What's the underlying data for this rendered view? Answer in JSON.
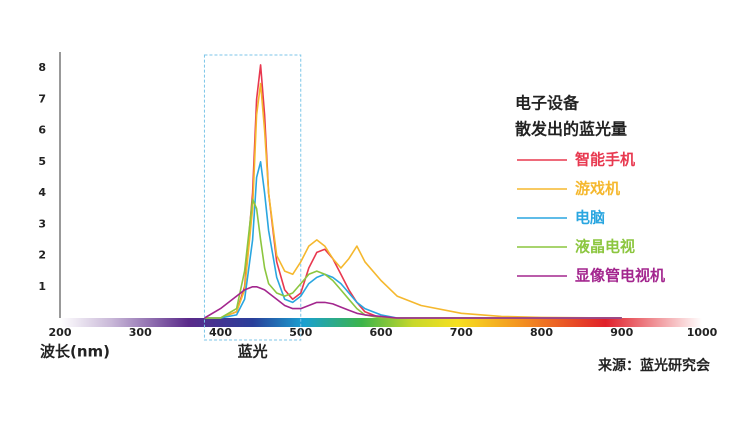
{
  "chart_data": {
    "type": "line",
    "legend_title": [
      "电子设备",
      "散发出的蓝光量"
    ],
    "x_label": "波长(nm)",
    "source": "来源：蓝光研究会",
    "blue_light_band": {
      "label": "蓝光",
      "range": [
        380,
        500
      ]
    },
    "x": [
      380,
      400,
      420,
      430,
      440,
      445,
      450,
      455,
      460,
      470,
      480,
      490,
      500,
      510,
      520,
      530,
      540,
      550,
      560,
      570,
      580,
      600,
      620,
      650,
      700,
      750,
      800,
      900
    ],
    "series": [
      {
        "name": "智能手机",
        "color": "#e8384f",
        "values": [
          0,
          0,
          0.2,
          1.0,
          4.0,
          7.0,
          8.1,
          6.5,
          4.0,
          1.8,
          0.9,
          0.6,
          0.8,
          1.6,
          2.1,
          2.2,
          1.9,
          1.4,
          0.9,
          0.5,
          0.2,
          0,
          0,
          0,
          0,
          0,
          0,
          0
        ]
      },
      {
        "name": "游戏机",
        "color": "#f5b82e",
        "values": [
          0,
          0,
          0.2,
          0.9,
          3.5,
          6.5,
          7.5,
          6.0,
          4.0,
          2.0,
          1.5,
          1.4,
          1.8,
          2.3,
          2.5,
          2.3,
          1.9,
          1.6,
          1.9,
          2.3,
          1.8,
          1.2,
          0.7,
          0.4,
          0.15,
          0.05,
          0.02,
          0
        ]
      },
      {
        "name": "电脑",
        "color": "#2aa6e0",
        "values": [
          0,
          0,
          0.1,
          0.6,
          2.5,
          4.5,
          5.0,
          4.0,
          2.8,
          1.3,
          0.6,
          0.5,
          0.7,
          1.1,
          1.3,
          1.4,
          1.3,
          1.1,
          0.8,
          0.5,
          0.3,
          0.1,
          0,
          0,
          0,
          0,
          0,
          0
        ]
      },
      {
        "name": "液晶电视",
        "color": "#8cc63f",
        "values": [
          0,
          0,
          0.3,
          1.5,
          3.8,
          3.5,
          2.5,
          1.6,
          1.1,
          0.8,
          0.7,
          0.8,
          1.1,
          1.4,
          1.5,
          1.4,
          1.2,
          0.9,
          0.6,
          0.3,
          0.1,
          0,
          0,
          0,
          0,
          0,
          0,
          0
        ]
      },
      {
        "name": "显像管电视机",
        "color": "#a3268e",
        "values": [
          0,
          0.3,
          0.7,
          0.9,
          1.0,
          1.0,
          0.95,
          0.9,
          0.8,
          0.6,
          0.4,
          0.3,
          0.3,
          0.4,
          0.5,
          0.5,
          0.45,
          0.35,
          0.25,
          0.15,
          0.1,
          0.05,
          0,
          0,
          0,
          0,
          0,
          0
        ]
      }
    ],
    "xlim": [
      200,
      1000
    ],
    "xticks": [
      200,
      300,
      400,
      500,
      600,
      700,
      800,
      900,
      1000
    ],
    "ylim": [
      0,
      8.4
    ],
    "yticks": [
      1,
      2,
      3,
      4,
      5,
      6,
      7,
      8
    ],
    "grid": false
  }
}
